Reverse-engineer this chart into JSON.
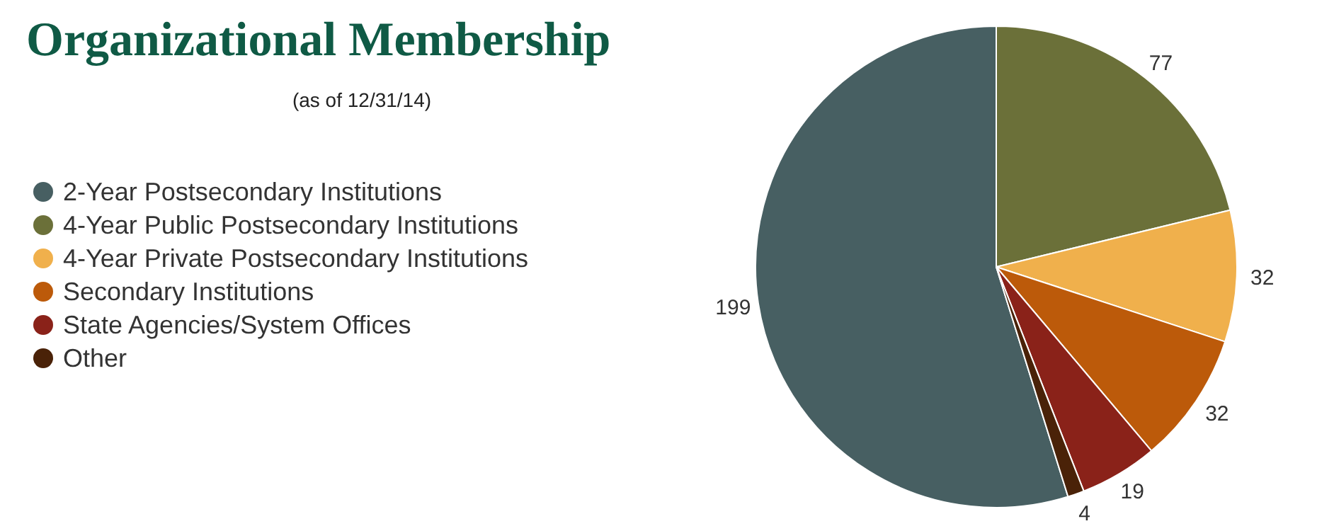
{
  "chart_data": {
    "type": "pie",
    "title": "Organizational Membership",
    "subtitle": "(as of 12/31/14)",
    "categories": [
      "2-Year Postsecondary Institutions",
      "4-Year Public Postsecondary Institutions",
      "4-Year Private Postsecondary Institutions",
      "Secondary Institutions",
      "State Agencies/System Offices",
      "Other"
    ],
    "values": [
      199,
      77,
      32,
      32,
      19,
      4
    ],
    "colors": [
      "#475f62",
      "#6b7039",
      "#f0b04c",
      "#bc5a0a",
      "#8a2219",
      "#4a2208"
    ],
    "data_labels": true,
    "legend": "left"
  }
}
